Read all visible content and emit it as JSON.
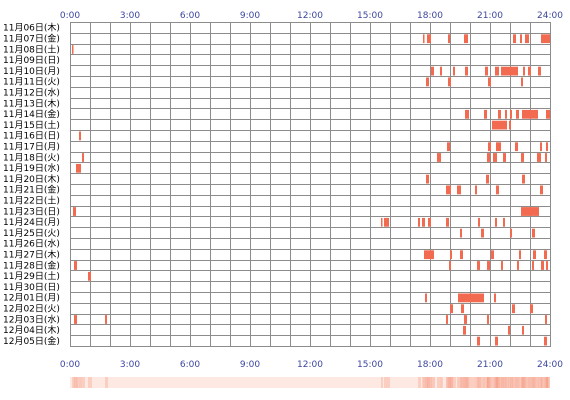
{
  "chart_data": {
    "type": "heatmap",
    "description_axes": "rows are days, x axis is time of day in hours",
    "x_range": [
      0,
      24
    ],
    "x_ticks": [
      "0:00",
      "3:00",
      "6:00",
      "9:00",
      "12:00",
      "15:00",
      "18:00",
      "21:00",
      "24:00"
    ],
    "grid": true,
    "colors": {
      "bar": "#f26a4f",
      "grid_line": "#8c8c8c",
      "tick_text": "#3c46a0",
      "row_text": "#000000",
      "strip_base": "#fde9e2",
      "strip_dark": "#f6a58f"
    },
    "rows": [
      {
        "label": "11月06日(木)",
        "events": []
      },
      {
        "label": "11月07日(金)",
        "events": [
          [
            17.65,
            17.72
          ],
          [
            17.85,
            18.05
          ],
          [
            18.9,
            19.0
          ],
          [
            19.7,
            19.9
          ],
          [
            22.15,
            22.3
          ],
          [
            22.5,
            22.6
          ],
          [
            22.75,
            22.95
          ],
          [
            23.55,
            24.0
          ]
        ]
      },
      {
        "label": "11月08日(土)",
        "events": [
          [
            0.1,
            0.16
          ]
        ]
      },
      {
        "label": "11月09日(日)",
        "events": []
      },
      {
        "label": "11月10日(月)",
        "events": [
          [
            18.05,
            18.2
          ],
          [
            18.5,
            18.6
          ],
          [
            19.15,
            19.25
          ],
          [
            19.75,
            19.9
          ],
          [
            20.75,
            20.9
          ],
          [
            21.25,
            21.45
          ],
          [
            21.55,
            22.4
          ],
          [
            22.65,
            22.75
          ],
          [
            22.9,
            23.05
          ],
          [
            23.4,
            23.55
          ]
        ]
      },
      {
        "label": "11月11日(火)",
        "events": [
          [
            17.8,
            17.95
          ],
          [
            18.9,
            19.05
          ],
          [
            20.9,
            21.05
          ],
          [
            22.55,
            22.65
          ]
        ]
      },
      {
        "label": "11月12日(水)",
        "events": []
      },
      {
        "label": "11月13日(木)",
        "events": []
      },
      {
        "label": "11月14日(金)",
        "events": [
          [
            19.75,
            19.95
          ],
          [
            20.7,
            20.85
          ],
          [
            21.4,
            21.55
          ],
          [
            21.75,
            21.85
          ],
          [
            22.0,
            22.1
          ],
          [
            22.3,
            22.45
          ],
          [
            22.6,
            23.4
          ],
          [
            23.8,
            24.0
          ]
        ]
      },
      {
        "label": "11月15日(土)",
        "events": [
          [
            21.1,
            21.85
          ],
          [
            21.95,
            22.05
          ]
        ]
      },
      {
        "label": "11月16日(日)",
        "events": [
          [
            0.45,
            0.55
          ]
        ]
      },
      {
        "label": "11月17日(月)",
        "events": [
          [
            18.85,
            19.0
          ],
          [
            20.9,
            21.05
          ],
          [
            21.3,
            21.55
          ],
          [
            22.25,
            22.4
          ],
          [
            23.5,
            23.6
          ],
          [
            23.8,
            23.9
          ]
        ]
      },
      {
        "label": "11月18日(火)",
        "events": [
          [
            0.6,
            0.7
          ],
          [
            18.35,
            18.55
          ],
          [
            20.85,
            21.0
          ],
          [
            21.15,
            21.35
          ],
          [
            21.65,
            21.8
          ],
          [
            22.55,
            22.7
          ],
          [
            23.35,
            23.55
          ],
          [
            23.75,
            23.85
          ]
        ]
      },
      {
        "label": "11月19日(水)",
        "events": [
          [
            0.3,
            0.55
          ]
        ]
      },
      {
        "label": "11月20日(木)",
        "events": [
          [
            17.8,
            17.95
          ],
          [
            20.8,
            20.95
          ],
          [
            22.6,
            22.75
          ]
        ]
      },
      {
        "label": "11月21日(金)",
        "events": [
          [
            18.8,
            19.05
          ],
          [
            19.35,
            19.55
          ],
          [
            20.25,
            20.35
          ],
          [
            21.3,
            21.45
          ],
          [
            23.5,
            23.65
          ]
        ]
      },
      {
        "label": "11月22日(土)",
        "events": []
      },
      {
        "label": "11月23日(日)",
        "events": [
          [
            0.15,
            0.3
          ],
          [
            22.55,
            23.45
          ]
        ]
      },
      {
        "label": "11月24日(月)",
        "events": [
          [
            15.55,
            15.6
          ],
          [
            15.7,
            15.95
          ],
          [
            17.4,
            17.5
          ],
          [
            17.6,
            17.75
          ],
          [
            17.9,
            18.05
          ],
          [
            18.8,
            18.95
          ],
          [
            20.4,
            20.5
          ],
          [
            21.25,
            21.35
          ],
          [
            21.65,
            21.75
          ]
        ]
      },
      {
        "label": "11月25日(火)",
        "events": [
          [
            19.5,
            19.6
          ],
          [
            20.55,
            20.7
          ],
          [
            22.0,
            22.1
          ],
          [
            23.1,
            23.25
          ]
        ]
      },
      {
        "label": "11月26日(水)",
        "events": []
      },
      {
        "label": "11月27日(木)",
        "events": [
          [
            17.7,
            18.2
          ],
          [
            19.0,
            19.1
          ],
          [
            19.5,
            19.65
          ],
          [
            21.05,
            21.2
          ],
          [
            22.45,
            22.55
          ],
          [
            23.15,
            23.3
          ],
          [
            23.7,
            23.85
          ]
        ]
      },
      {
        "label": "11月28日(金)",
        "events": [
          [
            0.2,
            0.35
          ],
          [
            18.95,
            19.05
          ],
          [
            20.35,
            20.5
          ],
          [
            20.85,
            21.0
          ],
          [
            21.55,
            21.65
          ],
          [
            22.35,
            22.45
          ],
          [
            23.1,
            23.2
          ],
          [
            23.55,
            23.7
          ],
          [
            23.8,
            23.9
          ]
        ]
      },
      {
        "label": "11月29日(土)",
        "events": [
          [
            0.9,
            1.05
          ]
        ]
      },
      {
        "label": "11月30日(日)",
        "events": []
      },
      {
        "label": "12月01日(月)",
        "events": [
          [
            17.75,
            17.85
          ],
          [
            19.4,
            20.7
          ],
          [
            21.2,
            21.3
          ]
        ]
      },
      {
        "label": "12月02日(火)",
        "events": [
          [
            19.0,
            19.15
          ],
          [
            19.55,
            19.7
          ],
          [
            22.1,
            22.25
          ],
          [
            23.0,
            23.15
          ]
        ]
      },
      {
        "label": "12月03日(水)",
        "events": [
          [
            0.2,
            0.35
          ],
          [
            1.75,
            1.85
          ],
          [
            18.8,
            18.9
          ],
          [
            19.7,
            19.85
          ],
          [
            20.85,
            20.95
          ],
          [
            23.75,
            23.85
          ]
        ]
      },
      {
        "label": "12月04日(木)",
        "events": [
          [
            19.65,
            19.8
          ],
          [
            21.9,
            22.0
          ],
          [
            22.6,
            22.7
          ]
        ]
      },
      {
        "label": "12月05日(金)",
        "events": [
          [
            20.35,
            20.5
          ],
          [
            21.25,
            21.4
          ],
          [
            23.7,
            23.85
          ]
        ]
      }
    ]
  }
}
